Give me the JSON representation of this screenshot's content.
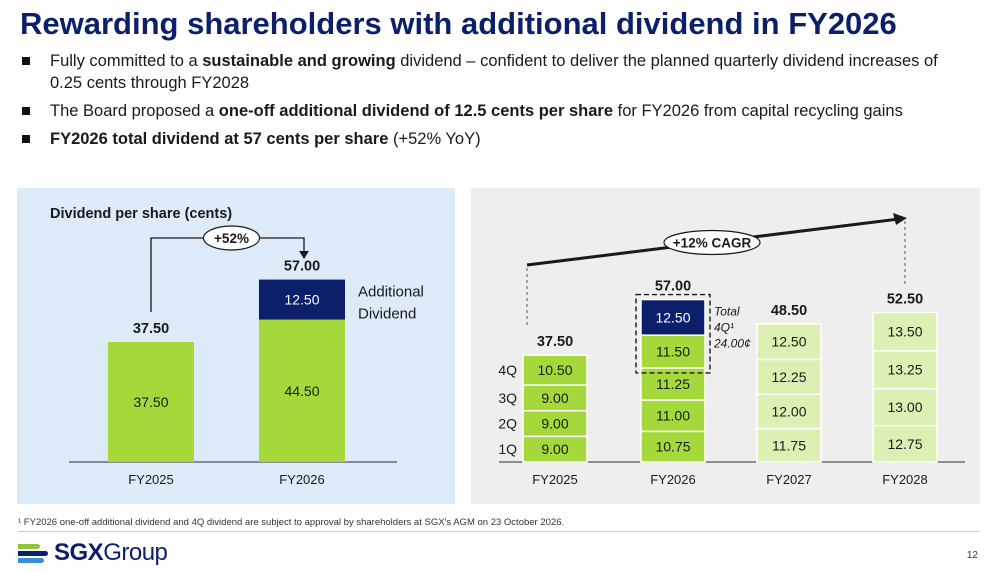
{
  "title": "Rewarding shareholders with additional dividend in FY2026",
  "bullets": [
    {
      "parts": [
        {
          "t": "Fully committed to a ",
          "b": false
        },
        {
          "t": "sustainable and growing",
          "b": true
        },
        {
          "t": " dividend – confident to deliver the planned quarterly dividend increases of 0.25 cents through FY2028",
          "b": false
        }
      ]
    },
    {
      "parts": [
        {
          "t": "The Board proposed a ",
          "b": false
        },
        {
          "t": "one-off additional dividend of 12.5 cents per share",
          "b": true
        },
        {
          "t": " for FY2026 from capital recycling gains",
          "b": false
        }
      ]
    },
    {
      "parts": [
        {
          "t": "FY2026 total dividend at 57 cents per share",
          "b": true
        },
        {
          "t": " (+52% YoY)",
          "b": false
        }
      ]
    }
  ],
  "colors": {
    "green": "#a5d83a",
    "light_green": "#dcf0b4",
    "navy": "#0b1f6b",
    "title": "#0b1f6b"
  },
  "chart_data": [
    {
      "type": "bar",
      "stacked": true,
      "title": "Dividend per share (cents)",
      "categories": [
        "FY2025",
        "FY2026"
      ],
      "series": [
        {
          "name": "",
          "values": [
            37.5,
            44.5
          ],
          "labels": [
            "37.50",
            "44.50"
          ],
          "color": "#a5d83a"
        },
        {
          "name": "Additional Dividend",
          "values": [
            0,
            12.5
          ],
          "labels": [
            "",
            "12.50"
          ],
          "color": "#0b1f6b"
        }
      ],
      "totals": [
        "37.50",
        "57.00"
      ],
      "annotations": [
        {
          "text": "+52%",
          "from": "FY2025",
          "to": "FY2026"
        }
      ],
      "series_label_lines": [
        "Additional",
        "Dividend"
      ],
      "ylim": [
        0,
        60
      ]
    },
    {
      "type": "bar",
      "stacked": true,
      "categories": [
        "FY2025",
        "FY2026",
        "FY2027",
        "FY2028"
      ],
      "quarters": [
        "1Q",
        "2Q",
        "3Q",
        "4Q"
      ],
      "series": [
        {
          "name": "1Q",
          "values": [
            9.0,
            10.75,
            11.75,
            12.75
          ],
          "labels": [
            "9.00",
            "10.75",
            "11.75",
            "12.75"
          ]
        },
        {
          "name": "2Q",
          "values": [
            9.0,
            11.0,
            12.0,
            13.0
          ],
          "labels": [
            "9.00",
            "11.00",
            "12.00",
            "13.00"
          ]
        },
        {
          "name": "3Q",
          "values": [
            9.0,
            11.25,
            12.25,
            13.25
          ],
          "labels": [
            "9.00",
            "11.25",
            "12.25",
            "13.25"
          ]
        },
        {
          "name": "4Q",
          "values": [
            10.5,
            11.5,
            12.5,
            13.5
          ],
          "labels": [
            "10.50",
            "11.50",
            "12.50",
            "13.50"
          ]
        },
        {
          "name": "Additional Dividend",
          "values": [
            0,
            12.5,
            0,
            0
          ],
          "labels": [
            "",
            "12.50",
            "",
            ""
          ]
        }
      ],
      "bar_colors": [
        "#a5d83a",
        "#a5d83a",
        "#dcf0b4",
        "#dcf0b4"
      ],
      "totals": [
        "37.50",
        "57.00",
        "48.50",
        "52.50"
      ],
      "annotations": [
        {
          "text": "+12% CAGR",
          "from": "FY2025",
          "to": "FY2028"
        },
        {
          "text_lines": [
            "Total",
            "4Q¹",
            "24.00¢"
          ],
          "at": "FY2026"
        }
      ],
      "ylim": [
        0,
        60
      ]
    }
  ],
  "footnote": "¹ FY2026 one-off additional dividend and 4Q dividend are subject to approval by shareholders at SGX's AGM on 23 October 2026.",
  "logo": {
    "bold": "SGX",
    "regular": "Group"
  },
  "page_number": "12"
}
